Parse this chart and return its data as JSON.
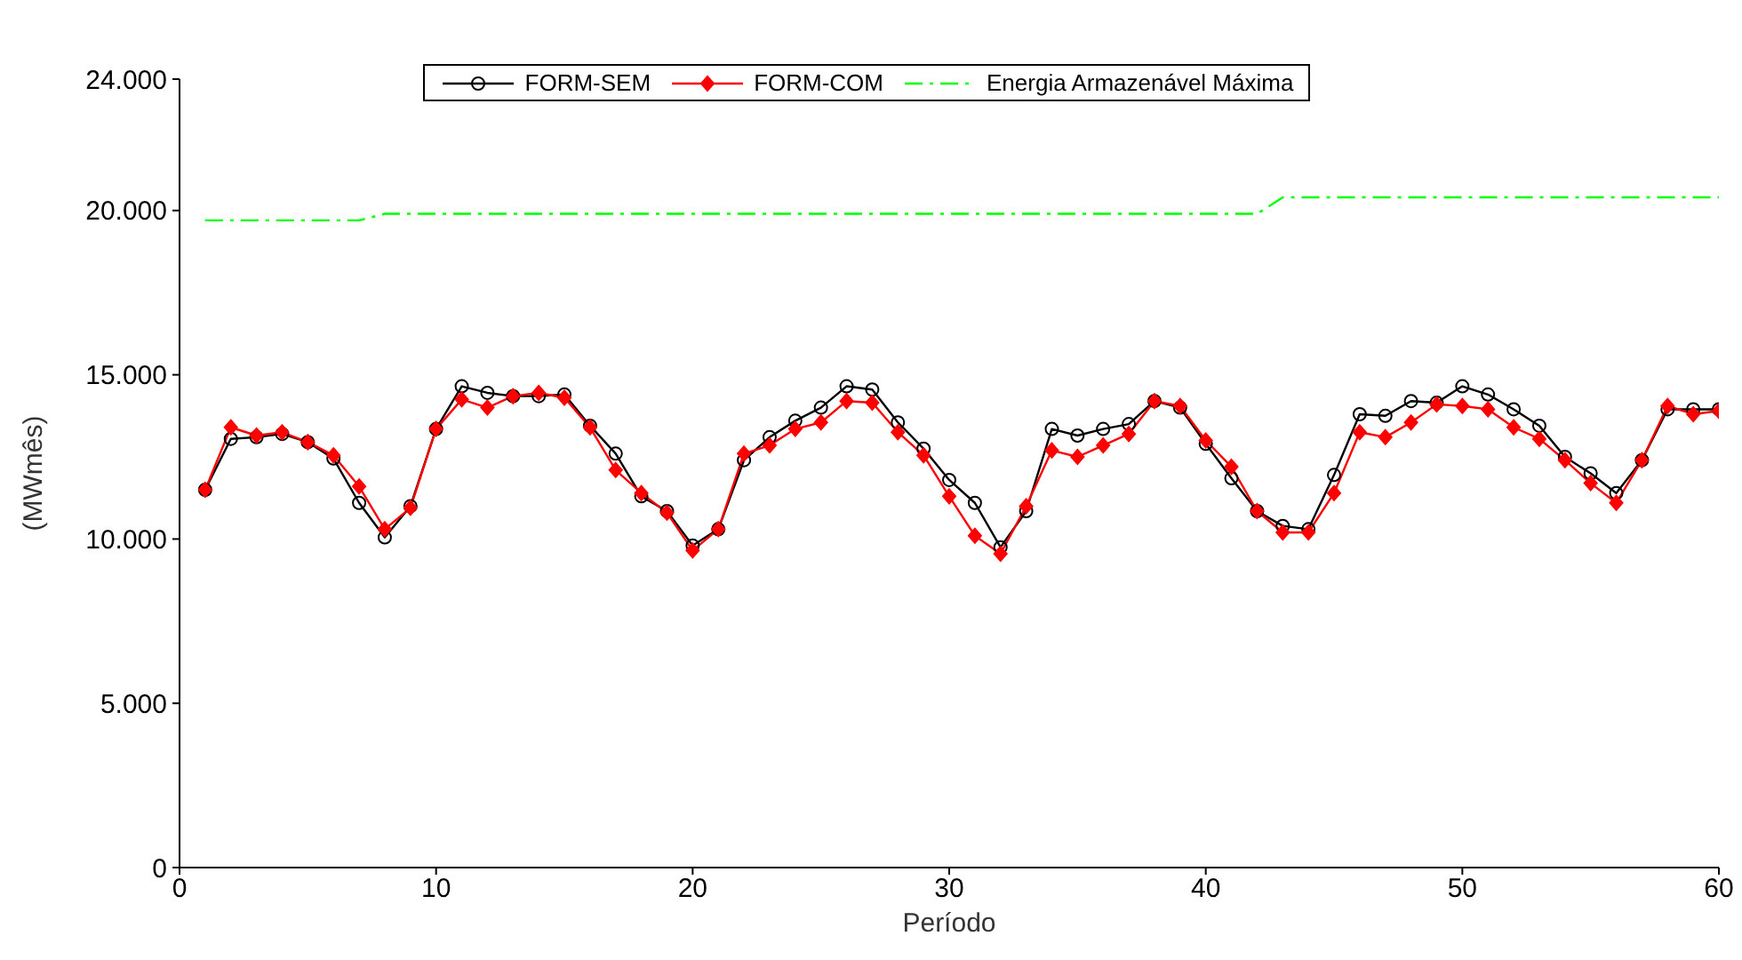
{
  "chart_data": {
    "type": "line",
    "xlabel": "Período",
    "ylabel": "(MWmês)",
    "x": [
      1,
      2,
      3,
      4,
      5,
      6,
      7,
      8,
      9,
      10,
      11,
      12,
      13,
      14,
      15,
      16,
      17,
      18,
      19,
      20,
      21,
      22,
      23,
      24,
      25,
      26,
      27,
      28,
      29,
      30,
      31,
      32,
      33,
      34,
      35,
      36,
      37,
      38,
      39,
      40,
      41,
      42,
      43,
      44,
      45,
      46,
      47,
      48,
      49,
      50,
      51,
      52,
      53,
      54,
      55,
      56,
      57,
      58,
      59,
      60
    ],
    "xlim": [
      0,
      60
    ],
    "xticks": [
      0,
      10,
      20,
      30,
      40,
      50,
      60
    ],
    "ylim": [
      0,
      24000
    ],
    "yticks": [
      {
        "value": 0,
        "label": "0"
      },
      {
        "value": 5000,
        "label": "5.000"
      },
      {
        "value": 10000,
        "label": "10.000"
      },
      {
        "value": 15000,
        "label": "15.000"
      },
      {
        "value": 20000,
        "label": "20.000"
      },
      {
        "value": 24000,
        "label": "24.000"
      }
    ],
    "grid": false,
    "legend": "top",
    "series": [
      {
        "name": "FORM-SEM",
        "color": "#000000",
        "marker": "circle",
        "line_style": "solid",
        "values": [
          11500,
          13050,
          13100,
          13200,
          12950,
          12450,
          11100,
          10050,
          11000,
          13350,
          14650,
          14450,
          14350,
          14350,
          14400,
          13450,
          12600,
          11300,
          10850,
          9800,
          10300,
          12400,
          13100,
          13600,
          14000,
          14650,
          14550,
          13550,
          12750,
          11800,
          11100,
          9750,
          10850,
          13350,
          13150,
          13350,
          13500,
          14200,
          14000,
          12900,
          11850,
          10850,
          10400,
          10300,
          11950,
          13800,
          13750,
          14200,
          14150,
          14650,
          14400,
          13950,
          13450,
          12500,
          12000,
          11400,
          12400,
          13950,
          13950,
          13950
        ]
      },
      {
        "name": "FORM-COM",
        "color": "#ff0000",
        "marker": "diamond",
        "line_style": "solid",
        "values": [
          11500,
          13400,
          13150,
          13250,
          12950,
          12550,
          11600,
          10300,
          10950,
          13350,
          14250,
          14000,
          14350,
          14450,
          14300,
          13400,
          12100,
          11400,
          10800,
          9650,
          10300,
          12600,
          12850,
          13350,
          13550,
          14200,
          14150,
          13250,
          12550,
          11300,
          10100,
          9550,
          11000,
          12700,
          12500,
          12850,
          13200,
          14200,
          14050,
          13000,
          12200,
          10850,
          10200,
          10200,
          11400,
          13250,
          13100,
          13550,
          14100,
          14050,
          13950,
          13400,
          13050,
          12400,
          11700,
          11100,
          12400,
          14050,
          13800,
          13900
        ]
      },
      {
        "name": "Energia Armazenável Máxima",
        "color": "#00ff00",
        "marker": "none",
        "line_style": "dashed",
        "values": [
          19700,
          19700,
          19700,
          19700,
          19700,
          19700,
          19700,
          19900,
          19900,
          19900,
          19900,
          19900,
          19900,
          19900,
          19900,
          19900,
          19900,
          19900,
          19900,
          19900,
          19900,
          19900,
          19900,
          19900,
          19900,
          19900,
          19900,
          19900,
          19900,
          19900,
          19900,
          19900,
          19900,
          19900,
          19900,
          19900,
          19900,
          19900,
          19900,
          19900,
          19900,
          19900,
          20400,
          20400,
          20400,
          20400,
          20400,
          20400,
          20400,
          20400,
          20400,
          20400,
          20400,
          20400,
          20400,
          20400,
          20400,
          20400,
          20400,
          20400
        ]
      }
    ]
  }
}
